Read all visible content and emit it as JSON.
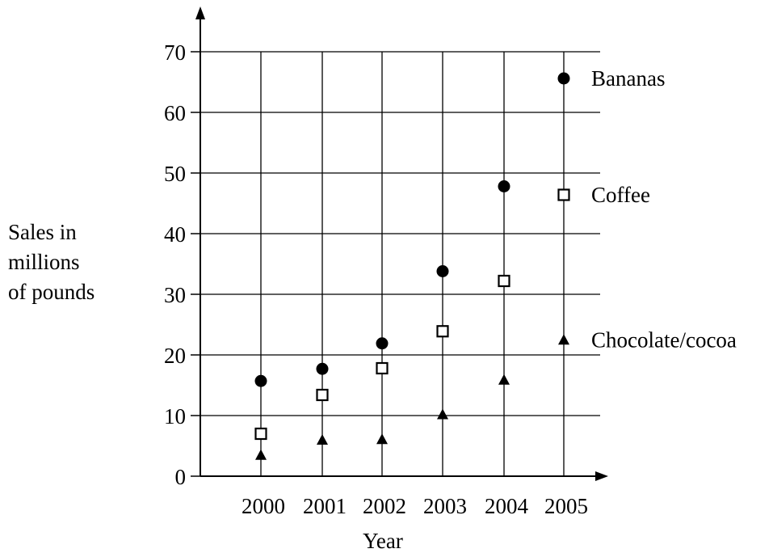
{
  "chart_data": {
    "type": "scatter",
    "categories": [
      "2000",
      "2001",
      "2002",
      "2003",
      "2004",
      "2005"
    ],
    "xlabel": "Year",
    "ylabel_lines": [
      "Sales in",
      "millions",
      "of pounds"
    ],
    "ylim": [
      0,
      70
    ],
    "yticks": [
      "0",
      "10",
      "20",
      "30",
      "40",
      "50",
      "60",
      "70"
    ],
    "grid": true,
    "series": [
      {
        "name": "Bananas",
        "marker": "filled-circle",
        "values": [
          15.7,
          17.7,
          21.9,
          33.8,
          47.8,
          65.6
        ]
      },
      {
        "name": "Coffee",
        "marker": "open-square",
        "values": [
          7.0,
          13.4,
          17.8,
          23.9,
          32.2,
          46.4
        ]
      },
      {
        "name": "Chocolate/cocoa",
        "marker": "filled-triangle",
        "values": [
          3.5,
          6.0,
          6.1,
          10.2,
          15.9,
          22.5
        ]
      }
    ]
  }
}
